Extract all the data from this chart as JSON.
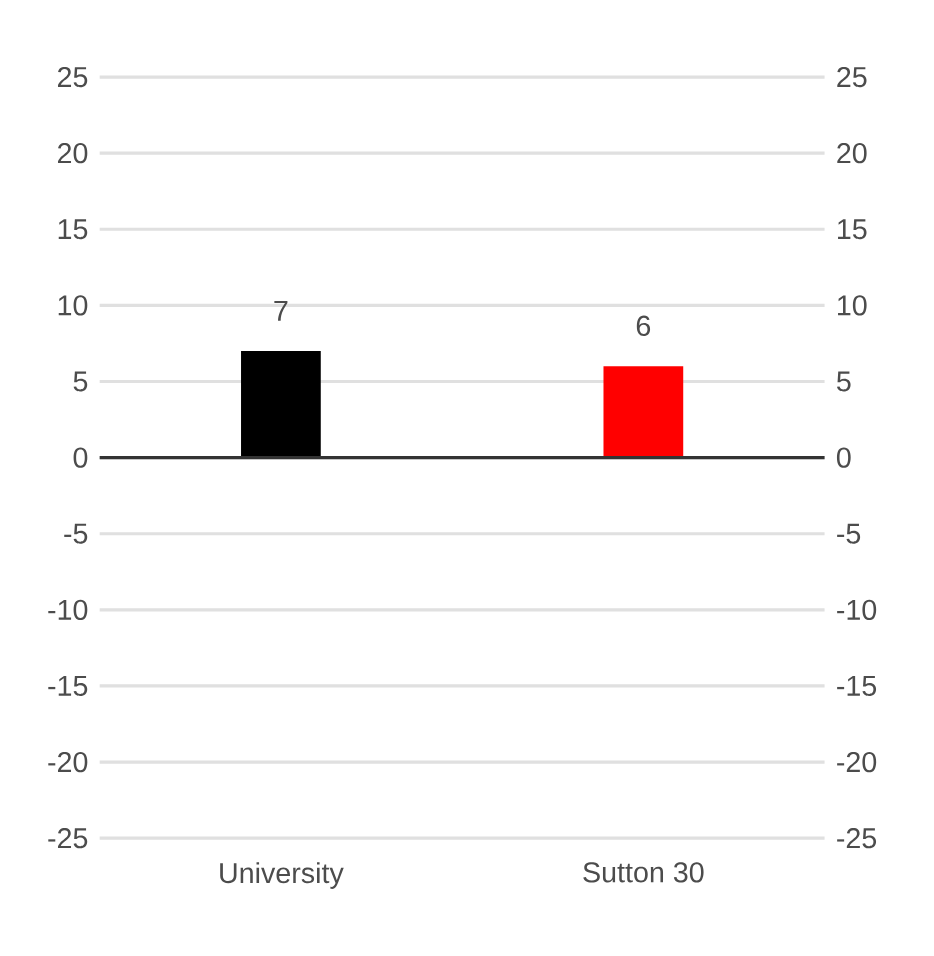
{
  "chart_data": {
    "type": "bar",
    "categories": [
      "University",
      "Sutton 30"
    ],
    "values": [
      7,
      6
    ],
    "colors": [
      "#000000",
      "#ff0000"
    ],
    "data_labels": true,
    "ylim": [
      -25,
      25
    ],
    "yticks": [
      -25,
      -20,
      -15,
      -10,
      -5,
      0,
      5,
      10,
      15,
      20,
      25
    ],
    "y2lim": [
      -25,
      25
    ],
    "y2ticks": [
      -25,
      -20,
      -15,
      -10,
      -5,
      0,
      5,
      10,
      15,
      20,
      25
    ],
    "grid": "y"
  }
}
